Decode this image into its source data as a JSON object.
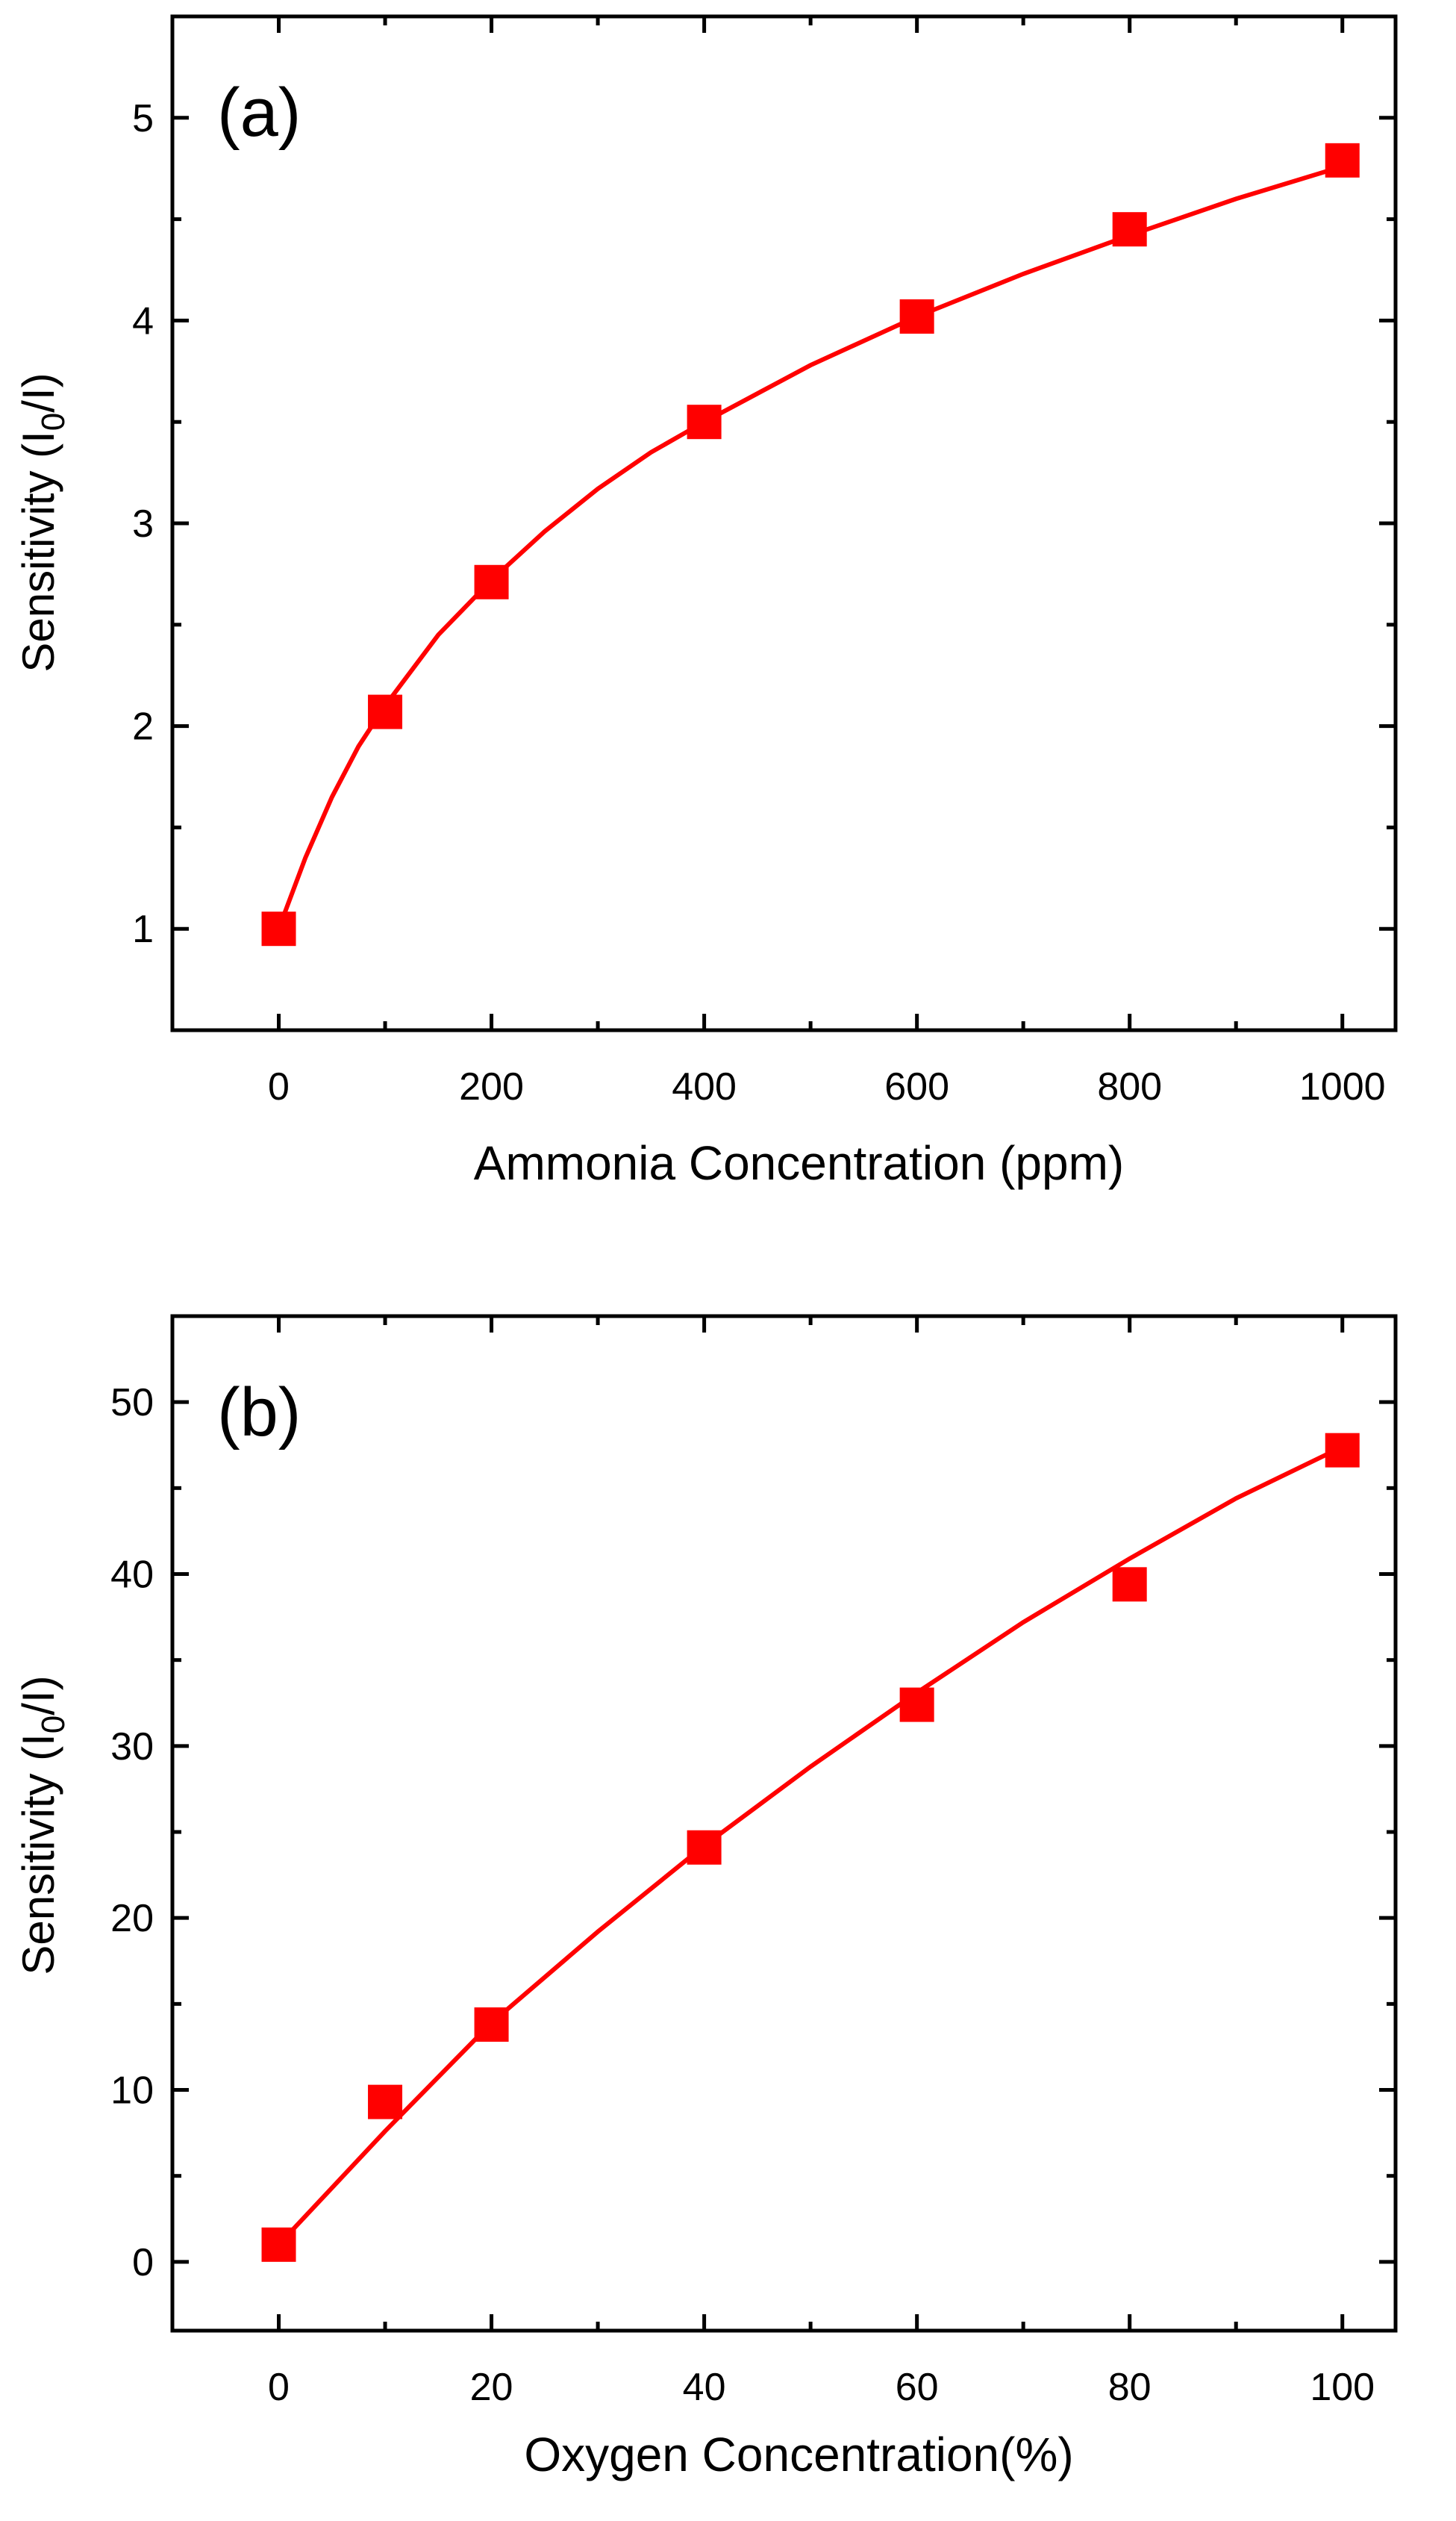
{
  "chart_data": [
    {
      "type": "scatter",
      "panel_label": "(a)",
      "xlabel": "Ammonia Concentration (ppm)",
      "ylabel_main": "Sensitivity (I",
      "ylabel_sub": "0",
      "ylabel_tail": "/I)",
      "xlim": [
        -100,
        1050
      ],
      "ylim": [
        0.5,
        5.5
      ],
      "xticks": [
        0,
        200,
        400,
        600,
        800,
        1000
      ],
      "xminor": [
        100,
        300,
        500,
        700,
        900
      ],
      "yticks": [
        1,
        2,
        3,
        4,
        5
      ],
      "yminor": [],
      "x": [
        0,
        100,
        200,
        400,
        600,
        800,
        1000
      ],
      "y": [
        1.0,
        2.07,
        2.71,
        3.5,
        4.02,
        4.45,
        4.79
      ],
      "fit": {
        "x": [
          0,
          25,
          50,
          75,
          100,
          150,
          200,
          250,
          300,
          350,
          400,
          500,
          600,
          700,
          800,
          900,
          1000
        ],
        "y": [
          1.0,
          1.35,
          1.65,
          1.9,
          2.1,
          2.45,
          2.72,
          2.96,
          3.17,
          3.35,
          3.5,
          3.78,
          4.02,
          4.23,
          4.42,
          4.6,
          4.76
        ]
      },
      "series_color": "#ff0000"
    },
    {
      "type": "scatter",
      "panel_label": "(b)",
      "xlabel": "Oxygen Concentration(%)",
      "ylabel_main": "Sensitivity (I",
      "ylabel_sub": "0",
      "ylabel_tail": "/I)",
      "xlim": [
        -10,
        105
      ],
      "ylim": [
        -4,
        55
      ],
      "xticks": [
        0,
        20,
        40,
        60,
        80,
        100
      ],
      "xminor": [
        10,
        30,
        50,
        70,
        90
      ],
      "yticks": [
        0,
        10,
        20,
        30,
        40,
        50
      ],
      "yminor": [],
      "x": [
        0,
        10,
        20,
        40,
        60,
        80,
        100
      ],
      "y": [
        1.0,
        9.3,
        13.8,
        24.1,
        32.4,
        39.4,
        47.2
      ],
      "fit": {
        "x": [
          0,
          10,
          20,
          30,
          40,
          50,
          60,
          70,
          80,
          90,
          100
        ],
        "y": [
          1.0,
          7.6,
          13.9,
          19.2,
          24.2,
          28.8,
          33.1,
          37.2,
          40.9,
          44.4,
          47.4
        ]
      },
      "series_color": "#ff0000"
    }
  ]
}
